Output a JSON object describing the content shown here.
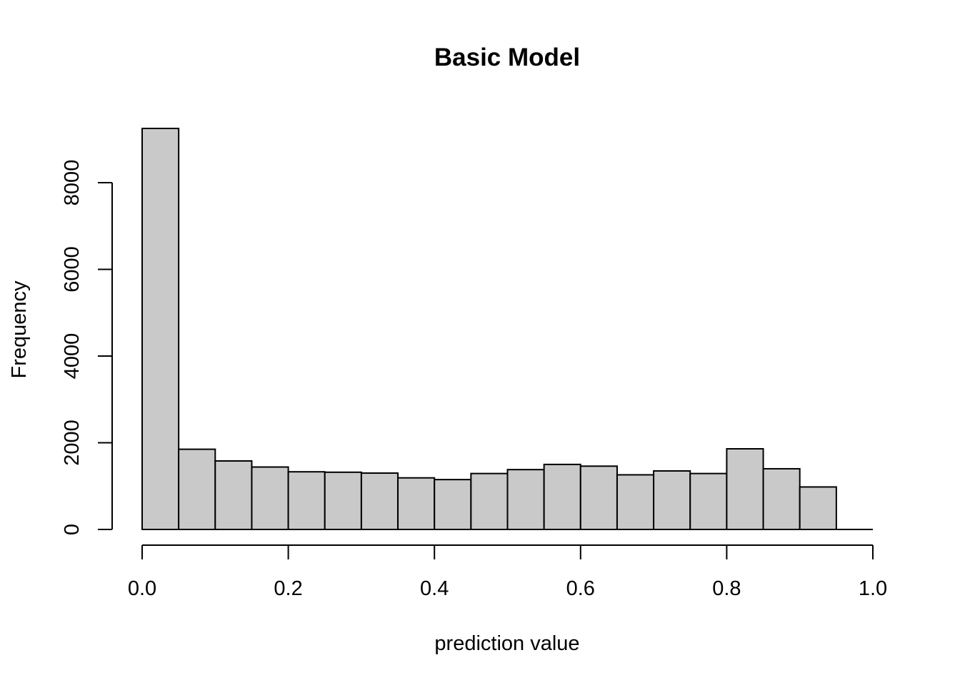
{
  "chart_data": {
    "type": "bar",
    "subtype": "histogram",
    "title": "Basic Model",
    "xlabel": "prediction value",
    "ylabel": "Frequency",
    "bin_width": 0.05,
    "bins": [
      {
        "start": 0.0,
        "end": 0.05,
        "count": 9250
      },
      {
        "start": 0.05,
        "end": 0.1,
        "count": 1850
      },
      {
        "start": 0.1,
        "end": 0.15,
        "count": 1580
      },
      {
        "start": 0.15,
        "end": 0.2,
        "count": 1440
      },
      {
        "start": 0.2,
        "end": 0.25,
        "count": 1330
      },
      {
        "start": 0.25,
        "end": 0.3,
        "count": 1320
      },
      {
        "start": 0.3,
        "end": 0.35,
        "count": 1300
      },
      {
        "start": 0.35,
        "end": 0.4,
        "count": 1190
      },
      {
        "start": 0.4,
        "end": 0.45,
        "count": 1150
      },
      {
        "start": 0.45,
        "end": 0.5,
        "count": 1290
      },
      {
        "start": 0.5,
        "end": 0.55,
        "count": 1380
      },
      {
        "start": 0.55,
        "end": 0.6,
        "count": 1500
      },
      {
        "start": 0.6,
        "end": 0.65,
        "count": 1460
      },
      {
        "start": 0.65,
        "end": 0.7,
        "count": 1260
      },
      {
        "start": 0.7,
        "end": 0.75,
        "count": 1350
      },
      {
        "start": 0.75,
        "end": 0.8,
        "count": 1290
      },
      {
        "start": 0.8,
        "end": 0.85,
        "count": 1860
      },
      {
        "start": 0.85,
        "end": 0.9,
        "count": 1400
      },
      {
        "start": 0.9,
        "end": 0.95,
        "count": 980
      }
    ],
    "xlim": [
      0,
      1
    ],
    "ylim": [
      0,
      9250
    ],
    "x_ticks": [
      0.0,
      0.2,
      0.4,
      0.6,
      0.8,
      1.0
    ],
    "x_tick_labels": [
      "0.0",
      "0.2",
      "0.4",
      "0.6",
      "0.8",
      "1.0"
    ],
    "y_ticks": [
      0,
      2000,
      4000,
      6000,
      8000
    ],
    "y_tick_labels": [
      "0",
      "2000",
      "4000",
      "6000",
      "8000"
    ],
    "grid": false,
    "colors": {
      "bar_fill": "#c9c9c9",
      "bar_stroke": "#000000",
      "background": "#ffffff"
    }
  }
}
